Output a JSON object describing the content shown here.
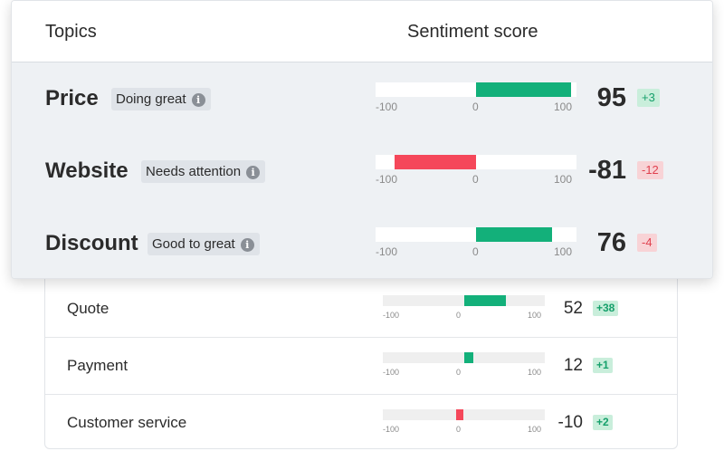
{
  "colors": {
    "positive": "#13b07a",
    "negative": "#f5475a"
  },
  "header": {
    "topics_label": "Topics",
    "score_label": "Sentiment score"
  },
  "axis": {
    "min_label": "-100",
    "zero_label": "0",
    "max_label": "100"
  },
  "topics": [
    {
      "name": "Price",
      "badge": "Doing great",
      "score": 95,
      "score_label": "95",
      "delta": "+3",
      "delta_sign": "positive"
    },
    {
      "name": "Website",
      "badge": "Needs attention",
      "score": -81,
      "score_label": "-81",
      "delta": "-12",
      "delta_sign": "negative"
    },
    {
      "name": "Discount",
      "badge": "Good to great",
      "score": 76,
      "score_label": "76",
      "delta": "-4",
      "delta_sign": "negative"
    }
  ],
  "more_topics": [
    {
      "name": "Quote",
      "score": 52,
      "score_label": "52",
      "delta": "+38",
      "delta_sign": "positive"
    },
    {
      "name": "Payment",
      "score": 12,
      "score_label": "12",
      "delta": "+1",
      "delta_sign": "positive"
    },
    {
      "name": "Customer service",
      "score": -10,
      "score_label": "-10",
      "delta": "+2",
      "delta_sign": "positive"
    }
  ]
}
